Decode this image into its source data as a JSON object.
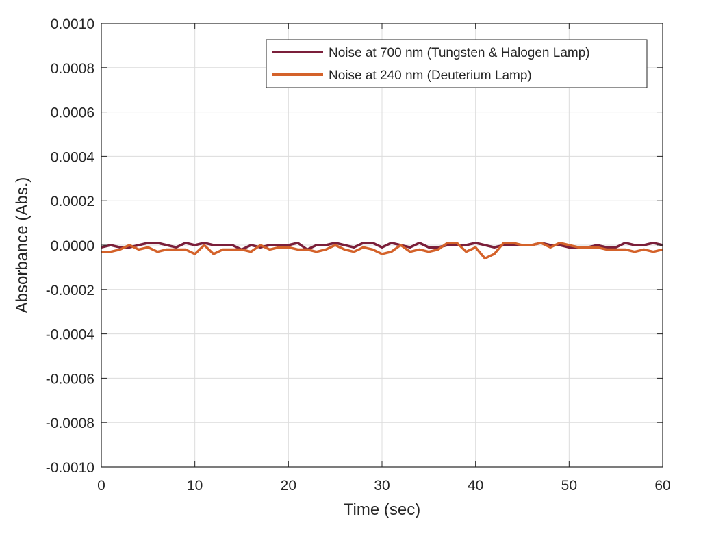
{
  "chart_data": {
    "type": "line",
    "title": "",
    "xlabel": "Time (sec)",
    "ylabel": "Absorbance (Abs.)",
    "xlim": [
      0,
      60
    ],
    "ylim": [
      -0.001,
      0.001
    ],
    "grid": true,
    "legend_position": "top-right",
    "x_tick_labels": [
      "0",
      "10",
      "20",
      "30",
      "40",
      "50",
      "60"
    ],
    "y_tick_labels": [
      "0.0010",
      "0.0008",
      "0.0006",
      "0.0004",
      "0.0002",
      "0.0000",
      "-0.0002",
      "-0.0004",
      "-0.0006",
      "-0.0008",
      "-0.0010"
    ],
    "x": [
      0,
      1,
      2,
      3,
      4,
      5,
      6,
      7,
      8,
      9,
      10,
      11,
      12,
      13,
      14,
      15,
      16,
      17,
      18,
      19,
      20,
      21,
      22,
      23,
      24,
      25,
      26,
      27,
      28,
      29,
      30,
      31,
      32,
      33,
      34,
      35,
      36,
      37,
      38,
      39,
      40,
      41,
      42,
      43,
      44,
      45,
      46,
      47,
      48,
      49,
      50,
      51,
      52,
      53,
      54,
      55,
      56,
      57,
      58,
      59,
      60
    ],
    "series": [
      {
        "name": "Noise at 700 nm (Tungsten & Halogen Lamp)",
        "color": "#7b1f3a",
        "values": [
          -1e-05,
          0.0,
          -1e-05,
          -1e-05,
          0.0,
          1e-05,
          1e-05,
          0.0,
          -1e-05,
          1e-05,
          0.0,
          1e-05,
          0.0,
          0.0,
          0.0,
          -2e-05,
          0.0,
          -1e-05,
          0.0,
          0.0,
          0.0,
          1e-05,
          -2e-05,
          0.0,
          0.0,
          1e-05,
          0.0,
          -1e-05,
          1e-05,
          1e-05,
          -1e-05,
          1e-05,
          0.0,
          -1e-05,
          1e-05,
          -1e-05,
          -1e-05,
          0.0,
          0.0,
          0.0,
          1e-05,
          0.0,
          -1e-05,
          0.0,
          0.0,
          0.0,
          0.0,
          1e-05,
          0.0,
          0.0,
          -1e-05,
          -1e-05,
          -1e-05,
          0.0,
          -1e-05,
          -1e-05,
          1e-05,
          0.0,
          0.0,
          1e-05,
          0.0
        ]
      },
      {
        "name": "Noise at 240 nm (Deuterium Lamp)",
        "color": "#d4622a",
        "values": [
          -3e-05,
          -3e-05,
          -2e-05,
          0.0,
          -2e-05,
          -1e-05,
          -3e-05,
          -2e-05,
          -2e-05,
          -2e-05,
          -4e-05,
          0.0,
          -4e-05,
          -2e-05,
          -2e-05,
          -2e-05,
          -3e-05,
          0.0,
          -2e-05,
          -1e-05,
          -1e-05,
          -2e-05,
          -2e-05,
          -3e-05,
          -2e-05,
          0.0,
          -2e-05,
          -3e-05,
          -1e-05,
          -2e-05,
          -4e-05,
          -3e-05,
          0.0,
          -3e-05,
          -2e-05,
          -3e-05,
          -2e-05,
          1e-05,
          1e-05,
          -3e-05,
          -1e-05,
          -6e-05,
          -4e-05,
          1e-05,
          1e-05,
          0.0,
          0.0,
          1e-05,
          -1e-05,
          1e-05,
          0.0,
          -1e-05,
          -1e-05,
          -1e-05,
          -2e-05,
          -2e-05,
          -2e-05,
          -3e-05,
          -2e-05,
          -3e-05,
          -2e-05
        ]
      }
    ]
  }
}
